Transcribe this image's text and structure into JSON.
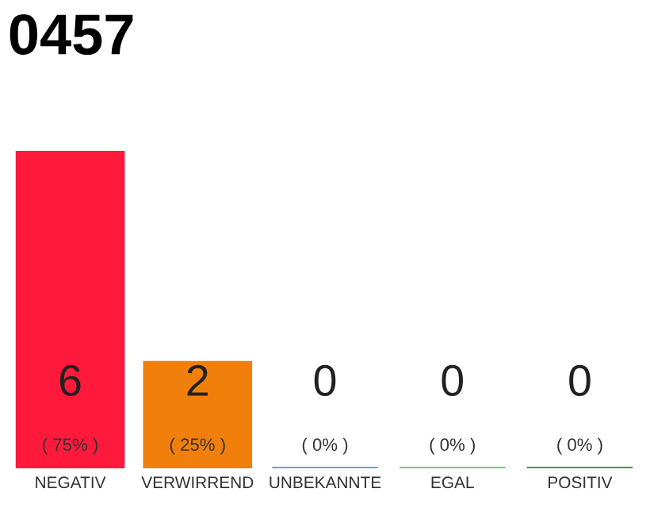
{
  "chart_data": {
    "type": "bar",
    "title": "0457",
    "categories": [
      "NEGATIV",
      "VERWIRREND",
      "UNBEKANNTE",
      "EGAL",
      "POSITIV"
    ],
    "values": [
      6,
      2,
      0,
      0,
      0
    ],
    "colors": [
      "#ff1a3c",
      "#f07f0c",
      "#6f9be0",
      "#7dc36b",
      "#22a846"
    ],
    "value_labels": [
      "6\n( 75% )",
      "2\n( 25% )",
      "0\n( 0% )",
      "0\n( 0% )",
      "0\n( 0% )"
    ],
    "ylim": [
      0,
      6
    ],
    "tick_labels": "x",
    "grid": false,
    "legend": false
  }
}
